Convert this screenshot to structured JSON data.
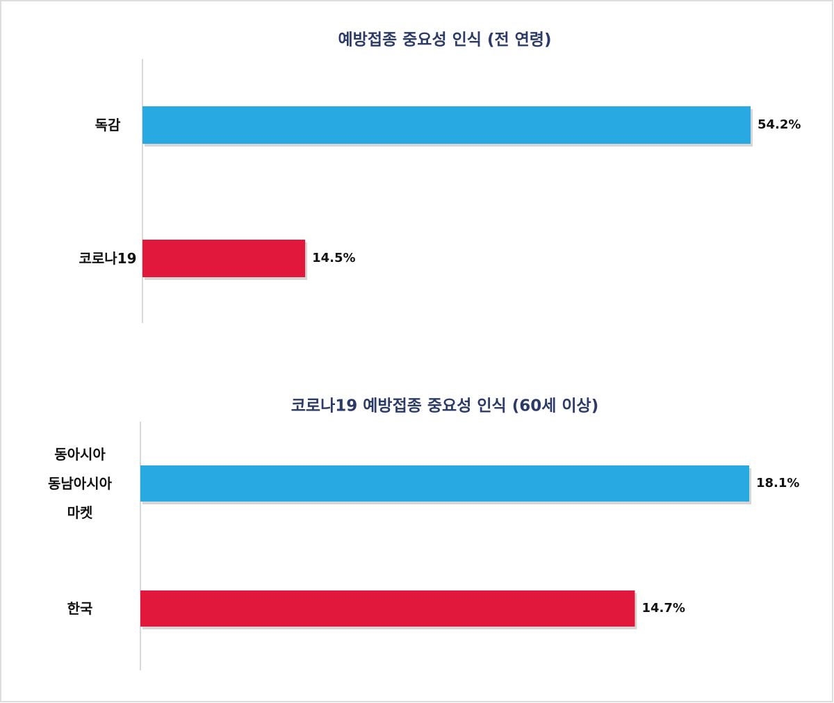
{
  "chart_data": [
    {
      "type": "hbar",
      "title": "예방접종 중요성 인식 (전 연령)",
      "categories": [
        "독감",
        "코로나19"
      ],
      "values": [
        54.2,
        14.5
      ],
      "value_labels": [
        "54.2%",
        "14.5%"
      ],
      "colors": [
        "#29a9e1",
        "#e1173b"
      ]
    },
    {
      "type": "hbar",
      "title": "코로나19 예방접종 중요성 인식 (60세 이상)",
      "categories": [
        "동아시아\n동남아시아\n마켓",
        "한국"
      ],
      "values": [
        18.1,
        14.7
      ],
      "value_labels": [
        "18.1%",
        "14.7%"
      ],
      "colors": [
        "#29a9e1",
        "#e1173b"
      ]
    }
  ]
}
